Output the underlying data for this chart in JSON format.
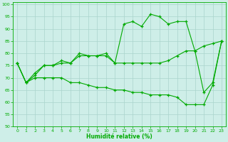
{
  "title": "",
  "xlabel": "Humidité relative (%)",
  "ylabel": "",
  "bg_color": "#ceeee8",
  "grid_color": "#aad4cc",
  "line_color": "#00aa00",
  "marker": "+",
  "xlim": [
    -0.5,
    23.5
  ],
  "ylim": [
    50,
    101
  ],
  "yticks": [
    50,
    55,
    60,
    65,
    70,
    75,
    80,
    85,
    90,
    95,
    100
  ],
  "xticks": [
    0,
    1,
    2,
    3,
    4,
    5,
    6,
    7,
    8,
    9,
    10,
    11,
    12,
    13,
    14,
    15,
    16,
    17,
    18,
    19,
    20,
    21,
    22,
    23
  ],
  "series": {
    "line1": [
      76,
      68,
      72,
      75,
      75,
      77,
      76,
      79,
      79,
      79,
      80,
      76,
      92,
      93,
      91,
      96,
      95,
      92,
      93,
      93,
      81,
      64,
      68,
      85
    ],
    "line2": [
      76,
      68,
      71,
      75,
      75,
      76,
      76,
      80,
      79,
      79,
      79,
      76,
      76,
      76,
      76,
      76,
      76,
      77,
      79,
      81,
      81,
      83,
      84,
      85
    ],
    "line3": [
      76,
      68,
      70,
      70,
      70,
      70,
      68,
      68,
      67,
      66,
      66,
      65,
      65,
      64,
      64,
      63,
      63,
      63,
      62,
      59,
      59,
      59,
      67,
      85
    ]
  }
}
